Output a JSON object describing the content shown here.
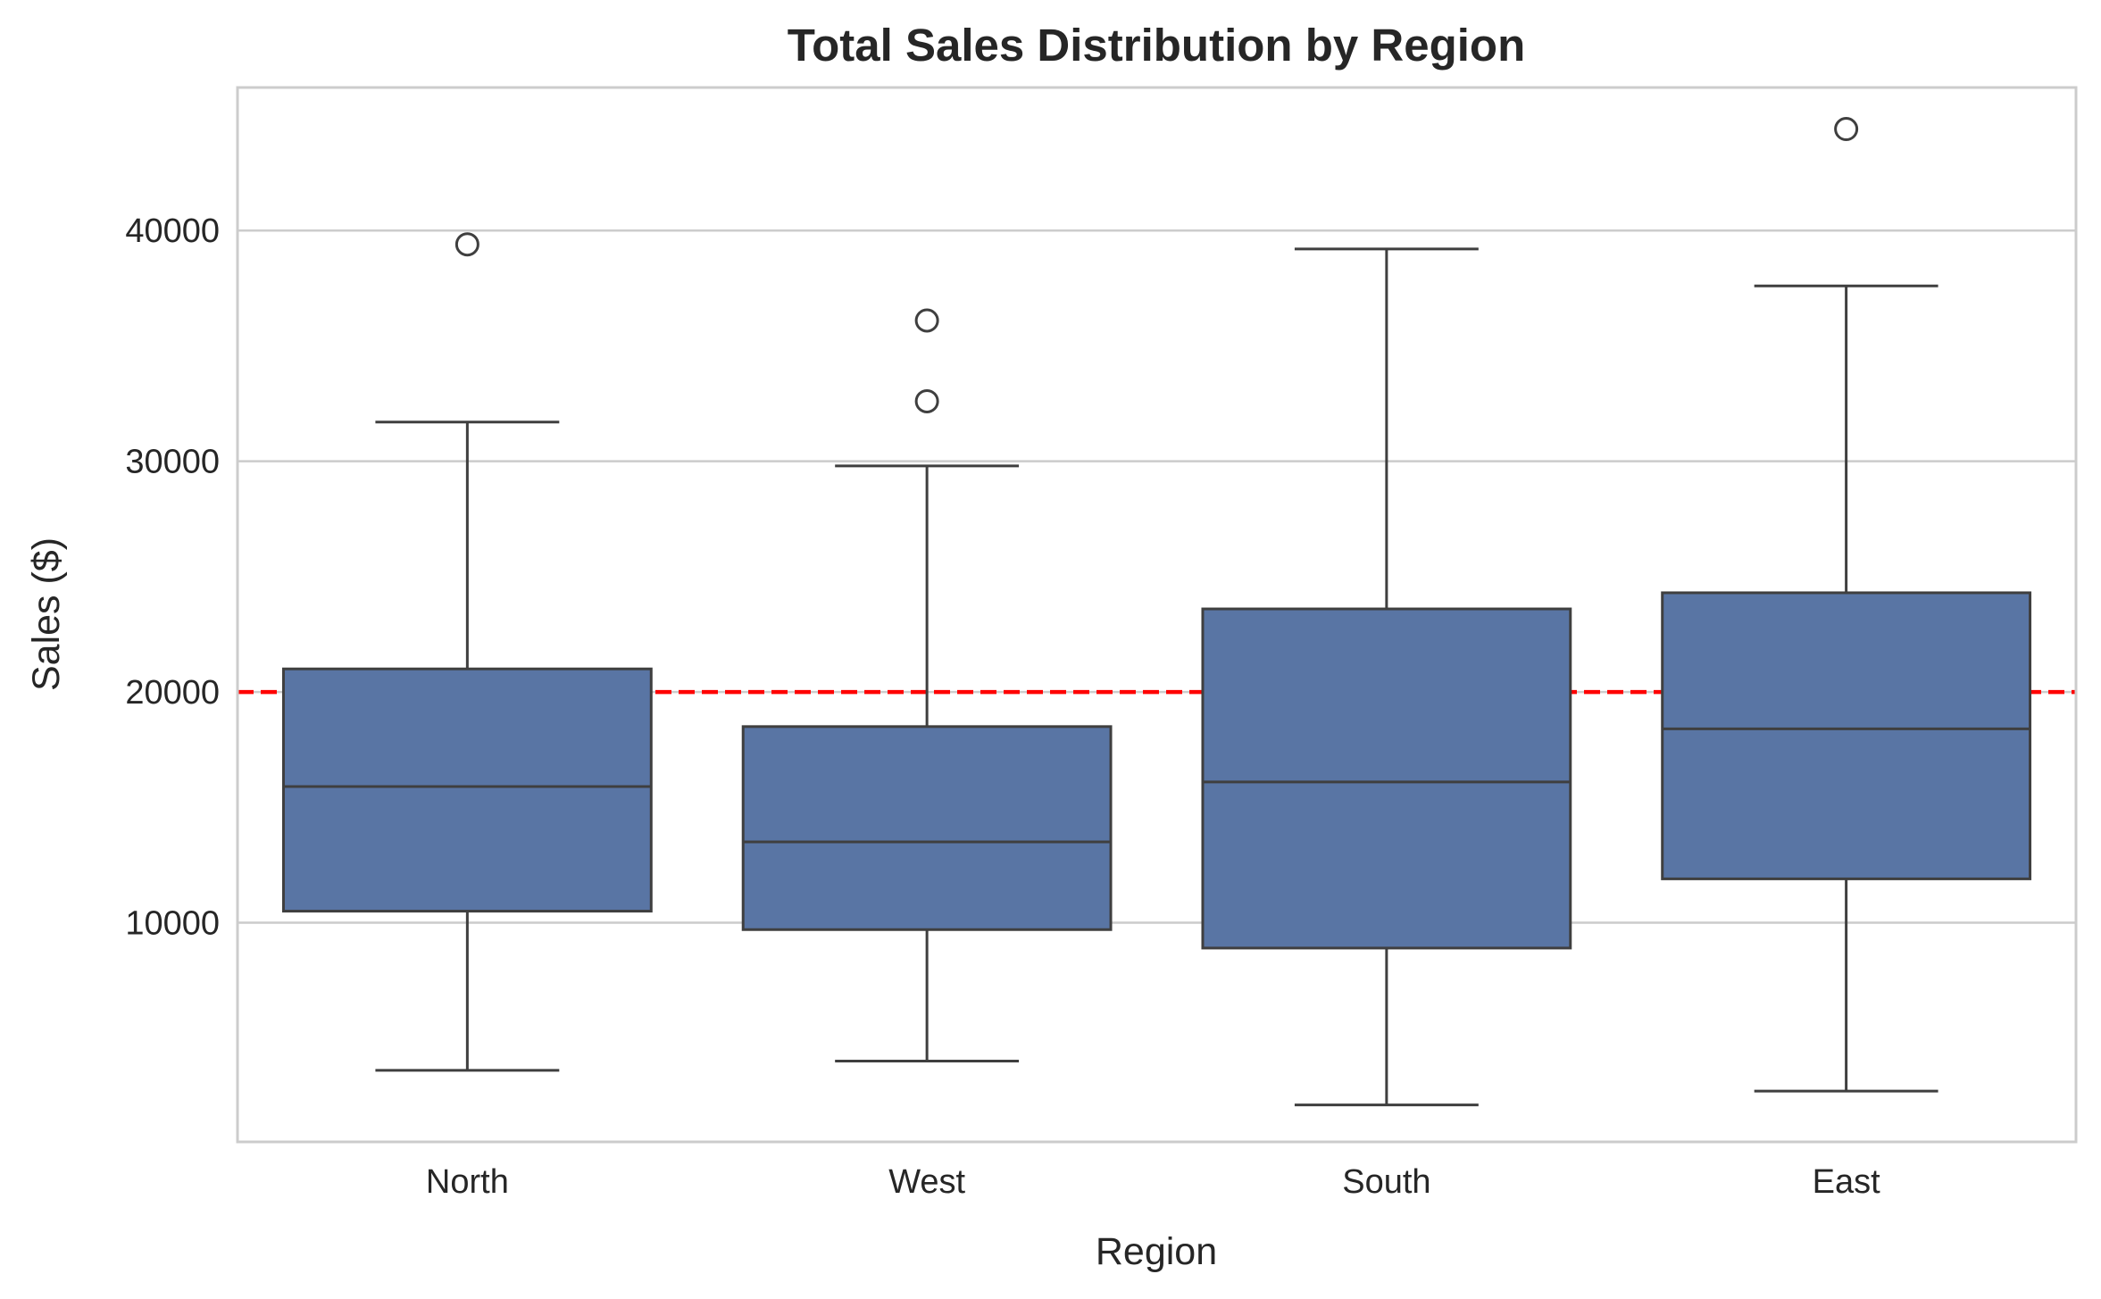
{
  "chart_data": {
    "type": "box",
    "title": "Total Sales Distribution by Region",
    "xlabel": "Region",
    "ylabel": "Sales ($)",
    "categories": [
      "North",
      "West",
      "South",
      "East"
    ],
    "boxes": [
      {
        "category": "North",
        "whisker_low": 3600,
        "q1": 10500,
        "median": 15900,
        "q3": 21000,
        "whisker_high": 31700,
        "outliers": [
          39400
        ]
      },
      {
        "category": "West",
        "whisker_low": 4000,
        "q1": 9700,
        "median": 13500,
        "q3": 18500,
        "whisker_high": 29800,
        "outliers": [
          32600,
          36100
        ]
      },
      {
        "category": "South",
        "whisker_low": 2100,
        "q1": 8900,
        "median": 16100,
        "q3": 23600,
        "whisker_high": 39200,
        "outliers": []
      },
      {
        "category": "East",
        "whisker_low": 2700,
        "q1": 11900,
        "median": 18400,
        "q3": 24300,
        "whisker_high": 37600,
        "outliers": [
          44400
        ]
      }
    ],
    "reference_line": {
      "value": 20000,
      "style": "dashed",
      "color": "#ff0000"
    },
    "yticks": [
      10000,
      20000,
      30000,
      40000
    ],
    "ylim": [
      500,
      46200
    ],
    "grid": "horizontal",
    "colors": {
      "box_fill": "#5975a4",
      "line": "#3f3f3f",
      "grid": "#cccccc",
      "spine": "#cccccc"
    }
  }
}
